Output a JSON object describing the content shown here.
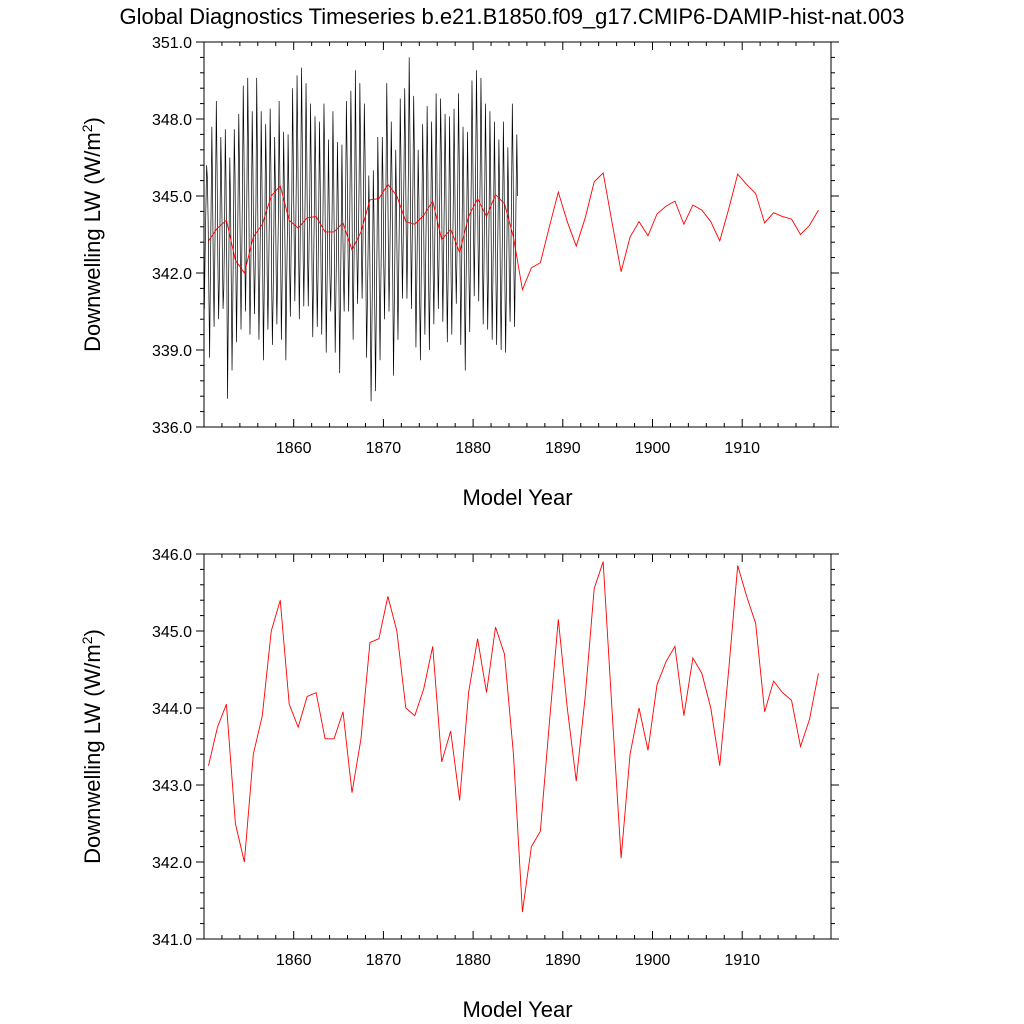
{
  "title": "Global Diagnostics Timeseries b.e21.B1850.f09_g17.CMIP6-DAMIP-hist-nat.003",
  "colors": {
    "monthly": "#000000",
    "annual": "#ff0000"
  },
  "chart_data": [
    {
      "type": "line",
      "xlabel": "Model Year",
      "ylabel": "Downwelling LW (W/m",
      "ylabel_sup": "2",
      "ylabel_close": ")",
      "xlim": [
        1850,
        1919.9
      ],
      "ylim": [
        336.0,
        351.0
      ],
      "xticks": [
        1860,
        1870,
        1880,
        1890,
        1900,
        1910
      ],
      "xtick_labels": [
        "1860",
        "1870",
        "1880",
        "1890",
        "1900",
        "1910"
      ],
      "yticks": [
        336.0,
        339.0,
        342.0,
        345.0,
        348.0,
        351.0
      ],
      "ytick_labels": [
        "336.0",
        "339.0",
        "342.0",
        "345.0",
        "348.0",
        "351.0"
      ],
      "series": [
        {
          "color": "#000000",
          "note_style": "monthly",
          "values": [
            340.6,
            342.8,
            344.5,
            346.2,
            345.7,
            344.1,
            341.3,
            338.7,
            341.8,
            344.6,
            347.7,
            345.1,
            341.9,
            339.9,
            342.8,
            345.3,
            348.7,
            346.0,
            342.6,
            340.2,
            341.7,
            344.3,
            347.3,
            345.6,
            343.0,
            340.6,
            341.4,
            343.7,
            347.6,
            345.5,
            342.1,
            337.1,
            340.3,
            343.4,
            346.5,
            344.8,
            341.6,
            338.2,
            340.8,
            343.9,
            347.6,
            345.8,
            342.4,
            339.3,
            341.9,
            344.7,
            348.2,
            346.0,
            342.9,
            339.8,
            342.5,
            345.4,
            349.3,
            346.7,
            343.1,
            340.5,
            342.6,
            345.6,
            349.6,
            346.8,
            342.8,
            339.6,
            341.8,
            344.3,
            348.3,
            346.0,
            342.5,
            340.4,
            342.2,
            344.8,
            349.6,
            346.4,
            342.1,
            339.4,
            341.6,
            344.0,
            348.3,
            345.7,
            342.4,
            338.6,
            341.2,
            344.4,
            347.8,
            345.6,
            342.0,
            339.8,
            341.9,
            344.5,
            348.4,
            346.1,
            341.6,
            339.2,
            341.1,
            343.8,
            347.3,
            345.3,
            342.1,
            340.0,
            342.2,
            344.2,
            348.7,
            345.8,
            342.8,
            339.4,
            341.5,
            344.3,
            347.5,
            345.2,
            342.6,
            338.6,
            341.4,
            343.5,
            347.4,
            345.3,
            342.3,
            340.3,
            342.8,
            345.0,
            349.2,
            346.3,
            343.6,
            340.9,
            343.0,
            345.8,
            349.7,
            346.9,
            343.1,
            340.2,
            342.6,
            346.0,
            350.0,
            347.1,
            343.0,
            340.7,
            342.9,
            345.6,
            349.4,
            346.7,
            342.8,
            340.7,
            343.0,
            345.0,
            348.6,
            345.9,
            342.1,
            339.5,
            341.8,
            344.3,
            348.1,
            346.0,
            342.4,
            339.9,
            341.8,
            344.5,
            347.9,
            345.4,
            342.3,
            339.6,
            342.4,
            345.4,
            348.6,
            346.3,
            342.6,
            338.9,
            341.2,
            343.7,
            347.2,
            344.6,
            341.8,
            340.5,
            342.3,
            344.8,
            348.3,
            345.8,
            342.3,
            338.9,
            341.2,
            343.5,
            347.1,
            344.9,
            341.6,
            338.1,
            340.9,
            343.6,
            347.0,
            344.3,
            341.9,
            340.5,
            342.9,
            345.1,
            348.7,
            346.4,
            343.3,
            340.5,
            342.8,
            345.8,
            349.1,
            346.6,
            342.7,
            339.4,
            341.9,
            344.6,
            349.9,
            346.5,
            342.8,
            340.8,
            343.0,
            345.6,
            349.4,
            346.9,
            343.2,
            341.0,
            342.9,
            345.4,
            348.6,
            346.5,
            342.2,
            338.7,
            340.7,
            342.9,
            345.8,
            343.8,
            340.5,
            337.0,
            339.5,
            342.3,
            346.0,
            343.9,
            340.5,
            337.4,
            340.6,
            343.2,
            347.3,
            345.0,
            341.3,
            338.6,
            341.4,
            343.6,
            347.3,
            345.5,
            342.3,
            340.2,
            342.7,
            345.7,
            349.4,
            346.6,
            343.4,
            340.5,
            342.3,
            344.7,
            347.9,
            345.7,
            341.8,
            338.0,
            340.5,
            343.2,
            346.8,
            344.8,
            341.7,
            339.4,
            342.1,
            344.6,
            348.8,
            346.4,
            343.3,
            341.0,
            343.3,
            345.9,
            349.2,
            346.9,
            343.6,
            341.0,
            343.3,
            346.2,
            350.4,
            347.4,
            343.7,
            340.6,
            343.2,
            345.5,
            348.9,
            346.6,
            343.2,
            339.1,
            341.2,
            343.7,
            346.8,
            344.8,
            340.9,
            338.6,
            341.6,
            344.3,
            347.8,
            345.6,
            341.8,
            339.6,
            342.3,
            344.8,
            348.5,
            346.0,
            341.7,
            339.0,
            341.6,
            344.5,
            347.9,
            345.3,
            342.2,
            340.0,
            342.6,
            345.1,
            349.0,
            346.3,
            342.7,
            340.6,
            342.7,
            345.3,
            348.8,
            346.7,
            342.8,
            340.1,
            342.4,
            345.0,
            348.2,
            345.9,
            342.2,
            339.3,
            341.7,
            344.2,
            348.1,
            345.4,
            342.0,
            339.6,
            342.4,
            344.8,
            348.4,
            345.7,
            342.6,
            340.8,
            342.8,
            345.5,
            349.0,
            346.3,
            342.3,
            339.2,
            341.7,
            344.4,
            347.7,
            345.5,
            341.3,
            338.2,
            341.3,
            344.0,
            347.5,
            345.1,
            341.8,
            339.7,
            342.6,
            345.6,
            349.5,
            347.0,
            343.9,
            341.1,
            343.6,
            346.3,
            349.9,
            347.2,
            343.4,
            340.9,
            343.4,
            346.0,
            349.6,
            346.9,
            342.9,
            340.0,
            342.2,
            345.0,
            348.6,
            346.2,
            342.6,
            339.8,
            341.9,
            344.6,
            348.3,
            345.8,
            342.3,
            339.4,
            341.8,
            344.3,
            347.9,
            345.3,
            341.9,
            339.2,
            341.9,
            344.5,
            347.2,
            345.1,
            341.5,
            339.0,
            341.7,
            344.3,
            347.9,
            345.6,
            341.7,
            338.9,
            341.3,
            343.9,
            346.9,
            344.7,
            341.5,
            340.1,
            342.6,
            345.3,
            348.6,
            346.1,
            342.4,
            339.9,
            342.3,
            345.1,
            347.4,
            345.0
          ]
        },
        {
          "color": "#ff0000",
          "note_style": "annual",
          "values": [
            343.25,
            343.75,
            344.05,
            342.5,
            342.0,
            343.4,
            343.9,
            345.0,
            345.4,
            344.05,
            343.75,
            344.15,
            344.2,
            343.6,
            343.6,
            343.95,
            342.9,
            343.6,
            344.85,
            344.9,
            345.45,
            345.0,
            344.0,
            343.9,
            344.25,
            344.8,
            343.3,
            343.7,
            342.8,
            344.2,
            344.9,
            344.2,
            345.05,
            344.7,
            343.4,
            341.35,
            342.2,
            342.4,
            343.8,
            345.15,
            344.0,
            343.05,
            344.15,
            345.55,
            345.9,
            343.95,
            342.05,
            343.4,
            344.0,
            343.45,
            344.3,
            344.6,
            344.8,
            343.9,
            344.65,
            344.45,
            344.0,
            343.25,
            344.5,
            345.85,
            345.45,
            345.1,
            343.95,
            344.35,
            344.2,
            344.1,
            343.5,
            343.85,
            344.45
          ]
        }
      ]
    },
    {
      "type": "line",
      "xlabel": "Model Year",
      "ylabel": "Downwelling LW (W/m",
      "ylabel_sup": "2",
      "ylabel_close": ")",
      "xlim": [
        1850,
        1919.9
      ],
      "ylim": [
        341.0,
        346.0
      ],
      "xticks": [
        1860,
        1870,
        1880,
        1890,
        1900,
        1910
      ],
      "xtick_labels": [
        "1860",
        "1870",
        "1880",
        "1890",
        "1900",
        "1910"
      ],
      "yticks": [
        341.0,
        342.0,
        343.0,
        344.0,
        345.0,
        346.0
      ],
      "ytick_labels": [
        "341.0",
        "342.0",
        "343.0",
        "344.0",
        "345.0",
        "346.0"
      ],
      "series": [
        {
          "color": "#ff0000",
          "note_style": "annual",
          "values": [
            343.25,
            343.75,
            344.05,
            342.5,
            342.0,
            343.4,
            343.9,
            345.0,
            345.4,
            344.05,
            343.75,
            344.15,
            344.2,
            343.6,
            343.6,
            343.95,
            342.9,
            343.6,
            344.85,
            344.9,
            345.45,
            345.0,
            344.0,
            343.9,
            344.25,
            344.8,
            343.3,
            343.7,
            342.8,
            344.2,
            344.9,
            344.2,
            345.05,
            344.7,
            343.4,
            341.35,
            342.2,
            342.4,
            343.8,
            345.15,
            344.0,
            343.05,
            344.15,
            345.55,
            345.9,
            343.95,
            342.05,
            343.4,
            344.0,
            343.45,
            344.3,
            344.6,
            344.8,
            343.9,
            344.65,
            344.45,
            344.0,
            343.25,
            344.5,
            345.85,
            345.45,
            345.1,
            343.95,
            344.35,
            344.2,
            344.1,
            343.5,
            343.85,
            344.45
          ]
        }
      ]
    }
  ]
}
